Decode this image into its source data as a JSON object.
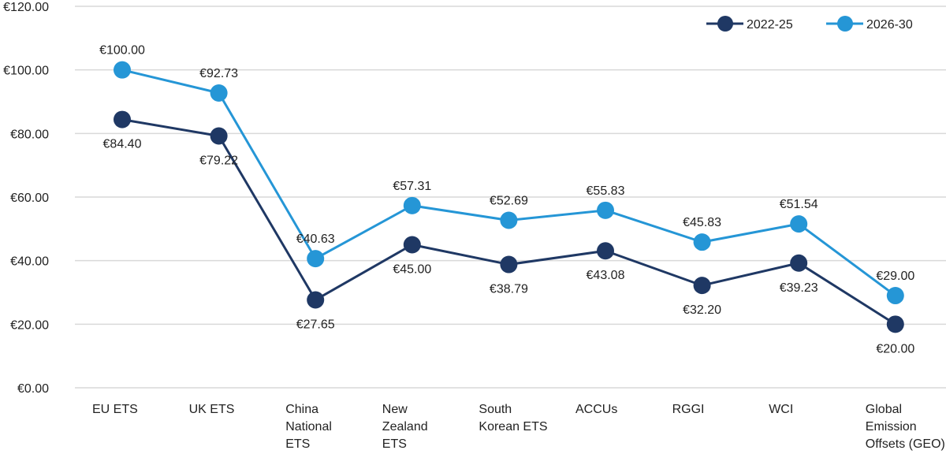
{
  "chart_data": {
    "type": "line",
    "title": "",
    "xlabel": "",
    "ylabel": "",
    "ylim": [
      0,
      120
    ],
    "yticks": [
      0,
      20,
      40,
      60,
      80,
      100,
      120
    ],
    "ytick_labels": [
      "€0.00",
      "€20.00",
      "€40.00",
      "€60.00",
      "€80.00",
      "€100.00",
      "€120.00"
    ],
    "grid": true,
    "legend_position": "top-right",
    "categories": [
      [
        "EU ETS"
      ],
      [
        "UK ETS"
      ],
      [
        "China",
        "National",
        "ETS"
      ],
      [
        "New",
        "Zealand",
        "ETS"
      ],
      [
        "South",
        "Korean ETS"
      ],
      [
        "ACCUs"
      ],
      [
        "RGGI"
      ],
      [
        "WCI"
      ],
      [
        "Global",
        "Emission",
        "Offsets (GEO)"
      ]
    ],
    "series": [
      {
        "name": "2022-25",
        "color": "#1f3864",
        "label_position": "below",
        "values": [
          84.4,
          79.22,
          27.65,
          45.0,
          38.79,
          43.08,
          32.2,
          39.23,
          20.0
        ],
        "labels": [
          "€84.40",
          "€79.22",
          "€27.65",
          "€45.00",
          "€38.79",
          "€43.08",
          "€32.20",
          "€39.23",
          "€20.00"
        ]
      },
      {
        "name": "2026-30",
        "color": "#2596d6",
        "label_position": "above",
        "values": [
          100.0,
          92.73,
          40.63,
          57.31,
          52.69,
          55.83,
          45.83,
          51.54,
          29.0
        ],
        "labels": [
          "€100.00",
          "€92.73",
          "€40.63",
          "€57.31",
          "€52.69",
          "€55.83",
          "€45.83",
          "€51.54",
          "€29.00"
        ]
      }
    ]
  }
}
